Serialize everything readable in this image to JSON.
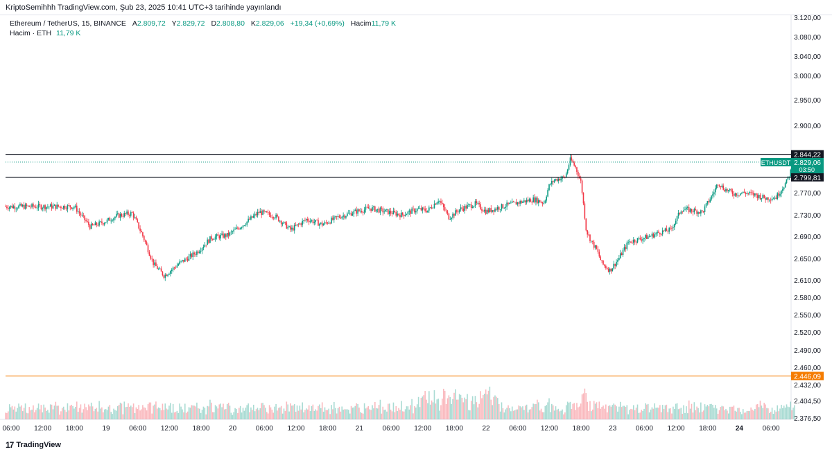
{
  "header": {
    "published_line": "KriptoSemihhh TradingView.com, Şub 23, 2025 10:41 UTC+3 tarihinde yayınlandı"
  },
  "legend": {
    "symbol": "Ethereum / TetherUS, 15, BINANCE",
    "open_label": "A",
    "open": "2.809,72",
    "high_label": "Y",
    "high": "2.829,72",
    "low_label": "D",
    "low": "2.808,80",
    "close_label": "K",
    "close": "2.829,06",
    "change": "+19,34 (+0,69%)",
    "volume_label": "Hacim",
    "volume": "11,79 K",
    "volume_indicator_label": "Hacim · ETH",
    "volume_indicator_value": "11,79 K"
  },
  "footer": {
    "brand": "TradingView"
  },
  "colors": {
    "up": "#089981",
    "down": "#f23645",
    "orange": "#f57c00",
    "line": "#131722",
    "accent": "#2962ff"
  },
  "chart_data": {
    "type": "candlestick",
    "symbol": "ETHUSDT",
    "interval": "15",
    "price_axis_ticks": [
      "3.120,00",
      "3.080,00",
      "3.040,00",
      "3.000,00",
      "2.950,00",
      "2.900,00",
      "2.770,00",
      "2.730,00",
      "2.690,00",
      "2.650,00",
      "2.610,00",
      "2.580,00",
      "2.550,00",
      "2.520,00",
      "2.490,00",
      "2.460,00",
      "2.432,00",
      "2.404,50",
      "2.376,50"
    ],
    "price_tick_values": [
      3120,
      3080,
      3040,
      3000,
      2950,
      2900,
      2770,
      2730,
      2690,
      2650,
      2610,
      2580,
      2550,
      2520,
      2490,
      2460,
      2432,
      2404.5,
      2376.5
    ],
    "time_axis_ticks": [
      "06:00",
      "12:00",
      "18:00",
      "19",
      "06:00",
      "12:00",
      "18:00",
      "20",
      "06:00",
      "12:00",
      "18:00",
      "21",
      "06:00",
      "12:00",
      "18:00",
      "22",
      "06:00",
      "12:00",
      "18:00",
      "23",
      "06:00",
      "12:00",
      "18:00",
      "24",
      "06:00"
    ],
    "bold_time_ticks": [
      "24"
    ],
    "horizontal_lines": [
      {
        "label": "2.844,22",
        "value": 2844.22,
        "color": "#131722"
      },
      {
        "label": "2.799,81",
        "value": 2799.81,
        "color": "#131722"
      },
      {
        "label": "2.446,09",
        "value": 2446.09,
        "color": "#f57c00"
      }
    ],
    "last_price": {
      "symbol_label": "ETHUSDT",
      "label": "2.829,06",
      "value": 2829.06,
      "countdown": "03:50"
    },
    "price_path": [
      [
        "18 18:00",
        2745
      ],
      [
        "18 21:00",
        2708
      ],
      [
        "19 00:00",
        2718
      ],
      [
        "19 02:00",
        2728
      ],
      [
        "19 05:00",
        2733
      ],
      [
        "19 07:00",
        2690
      ],
      [
        "19 09:00",
        2640
      ],
      [
        "19 11:00",
        2618
      ],
      [
        "19 14:00",
        2642
      ],
      [
        "19 17:00",
        2660
      ],
      [
        "19 20:00",
        2688
      ],
      [
        "19 23:00",
        2692
      ],
      [
        "20 02:00",
        2712
      ],
      [
        "20 05:00",
        2735
      ],
      [
        "20 08:00",
        2728
      ],
      [
        "20 11:00",
        2702
      ],
      [
        "20 14:00",
        2722
      ],
      [
        "20 17:00",
        2712
      ],
      [
        "20 20:00",
        2726
      ],
      [
        "20 23:00",
        2735
      ],
      [
        "21 02:00",
        2742
      ],
      [
        "21 05:00",
        2736
      ],
      [
        "21 08:00",
        2730
      ],
      [
        "21 11:00",
        2740
      ],
      [
        "21 13:00",
        2738
      ],
      [
        "21 15:00",
        2758
      ],
      [
        "21 17:00",
        2725
      ],
      [
        "21 19:00",
        2740
      ],
      [
        "21 22:00",
        2750
      ],
      [
        "22 00:00",
        2736
      ],
      [
        "22 03:00",
        2745
      ],
      [
        "22 06:00",
        2752
      ],
      [
        "22 09:00",
        2758
      ],
      [
        "22 11:00",
        2752
      ],
      [
        "22 12:00",
        2785
      ],
      [
        "22 13:00",
        2795
      ],
      [
        "22 15:00",
        2800
      ],
      [
        "22 16:00",
        2835
      ],
      [
        "22 17:00",
        2818
      ],
      [
        "22 18:00",
        2790
      ],
      [
        "22 18:30",
        2745
      ],
      [
        "22 19:00",
        2700
      ],
      [
        "22 20:00",
        2680
      ],
      [
        "22 21:00",
        2665
      ],
      [
        "22 22:00",
        2640
      ],
      [
        "22 23:30",
        2628
      ],
      [
        "23 01:00",
        2648
      ],
      [
        "23 03:00",
        2680
      ],
      [
        "23 05:00",
        2685
      ],
      [
        "23 07:00",
        2690
      ],
      [
        "23 09:00",
        2698
      ],
      [
        "23 11:00",
        2702
      ],
      [
        "23 13:00",
        2740
      ],
      [
        "23 15:00",
        2738
      ],
      [
        "23 17:00",
        2735
      ],
      [
        "23 19:00",
        2768
      ],
      [
        "23 20:00",
        2790
      ],
      [
        "23 21:00",
        2778
      ],
      [
        "23 23:00",
        2768
      ],
      [
        "24 01:00",
        2770
      ],
      [
        "24 03:00",
        2766
      ],
      [
        "24 05:00",
        2760
      ],
      [
        "24 07:00",
        2762
      ],
      [
        "24 09:00",
        2792
      ],
      [
        "24 10:00",
        2820
      ],
      [
        "24 10:41",
        2829.06
      ]
    ],
    "volume_scale_note": "volume shown as relative bars, peak near 22 18:00"
  }
}
